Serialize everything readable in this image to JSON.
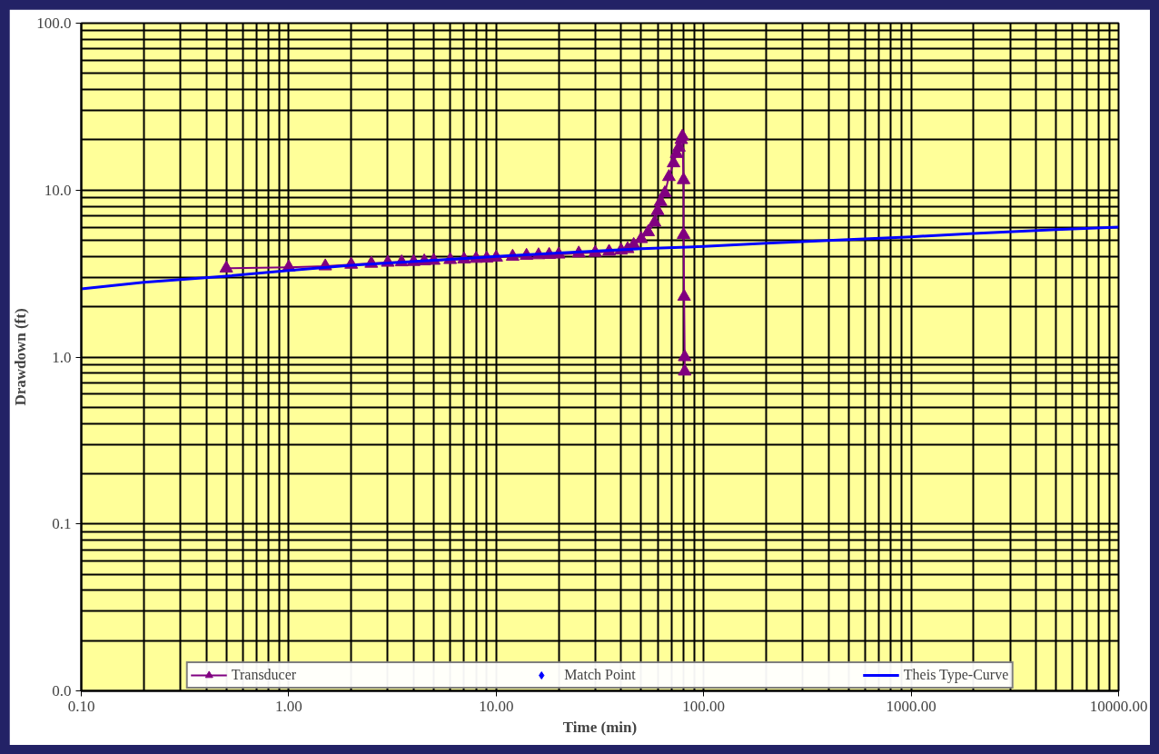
{
  "chart_data": {
    "type": "line",
    "xlabel": "Time (min)",
    "ylabel": "Drawdown (ft)",
    "log": "xy",
    "grid": true,
    "legend": "bottom",
    "xlim": [
      0.1,
      10000
    ],
    "ylim": [
      0.01,
      100
    ],
    "xticks": [
      {
        "value": 0.1,
        "label": "0.10"
      },
      {
        "value": 1,
        "label": "1.00"
      },
      {
        "value": 10,
        "label": "10.00"
      },
      {
        "value": 100,
        "label": "100.00"
      },
      {
        "value": 1000,
        "label": "1000.00"
      },
      {
        "value": 10000,
        "label": "10000.00"
      }
    ],
    "yticks": [
      {
        "value": 0.01,
        "label": "0.0"
      },
      {
        "value": 0.1,
        "label": "0.1"
      },
      {
        "value": 1,
        "label": "1.0"
      },
      {
        "value": 10,
        "label": "10.0"
      },
      {
        "value": 100,
        "label": "100.0"
      }
    ],
    "series": [
      {
        "name": "Transducer",
        "marker": "triangle",
        "color": "#800080",
        "x": [
          0.5,
          1,
          1.5,
          2,
          2.5,
          3,
          3.5,
          4,
          4.5,
          5,
          6,
          7,
          8,
          9,
          10,
          12,
          14,
          16,
          18,
          20,
          25,
          30,
          35,
          40,
          43,
          46,
          50,
          54,
          58,
          60,
          62,
          65,
          68,
          71.6,
          74,
          76,
          78,
          79,
          80,
          80,
          80.5,
          81,
          81
        ],
        "values": [
          3.4,
          3.45,
          3.5,
          3.58,
          3.63,
          3.68,
          3.7,
          3.72,
          3.75,
          3.78,
          3.82,
          3.85,
          3.88,
          3.9,
          3.95,
          4.0,
          4.05,
          4.08,
          4.1,
          4.12,
          4.18,
          4.22,
          4.28,
          4.35,
          4.44,
          4.7,
          5.1,
          5.6,
          6.4,
          7.5,
          8.5,
          9.6,
          12,
          14.5,
          16.5,
          18,
          20,
          21,
          11.5,
          5.4,
          2.3,
          1.0,
          0.82
        ]
      },
      {
        "name": "Match Point",
        "type": "scatter",
        "marker": "diamond",
        "color": "#0000ff"
      },
      {
        "name": "Theis Type-Curve",
        "marker": "none",
        "color": "#0000ff",
        "x": [
          0.1,
          0.2,
          0.5,
          1,
          2,
          5,
          10,
          20,
          50,
          100,
          200,
          500,
          1000,
          2000,
          5000,
          10000
        ],
        "values": [
          2.56,
          2.8,
          3.05,
          3.3,
          3.55,
          3.8,
          4.0,
          4.2,
          4.45,
          4.6,
          4.8,
          5.05,
          5.25,
          5.5,
          5.8,
          6.0
        ]
      }
    ]
  }
}
